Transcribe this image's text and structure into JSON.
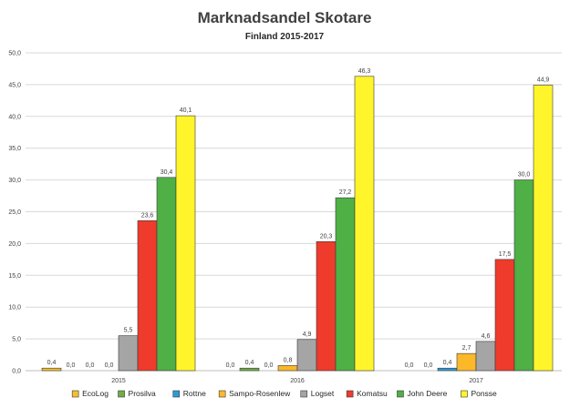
{
  "chart_data": {
    "type": "bar",
    "title": "Marknadsandel Skotare",
    "subtitle": "Finland 2015-2017",
    "categories": [
      "2015",
      "2016",
      "2017"
    ],
    "ylim": [
      0,
      50
    ],
    "yticks": [
      "0,0",
      "5,0",
      "10,0",
      "15,0",
      "20,0",
      "25,0",
      "30,0",
      "35,0",
      "40,0",
      "45,0",
      "50,0"
    ],
    "grid": true,
    "legend_position": "bottom",
    "series": [
      {
        "name": "EcoLog",
        "color": "#f2c12e",
        "values": [
          0.4,
          0.0,
          0.0
        ],
        "labels": [
          "0,4",
          "0,0",
          "0,0"
        ]
      },
      {
        "name": "Prosilva",
        "color": "#70ad47",
        "values": [
          0.0,
          0.4,
          0.0
        ],
        "labels": [
          "0,0",
          "0,4",
          "0,0"
        ]
      },
      {
        "name": "Rottne",
        "color": "#2e9bd6",
        "values": [
          0.0,
          0.0,
          0.4
        ],
        "labels": [
          "0,0",
          "0,0",
          "0,4"
        ]
      },
      {
        "name": "Sampo-Rosenlew",
        "color": "#fbb829",
        "values": [
          0.0,
          0.8,
          2.7
        ],
        "labels": [
          "0,0",
          "0,8",
          "2,7"
        ]
      },
      {
        "name": "Logset",
        "color": "#a5a5a5",
        "values": [
          5.5,
          4.9,
          4.6
        ],
        "labels": [
          "5,5",
          "4,9",
          "4,6"
        ]
      },
      {
        "name": "Komatsu",
        "color": "#ee3b2b",
        "values": [
          23.6,
          20.3,
          17.5
        ],
        "labels": [
          "23,6",
          "20,3",
          "17,5"
        ]
      },
      {
        "name": "John Deere",
        "color": "#4fb045",
        "values": [
          30.4,
          27.2,
          30.0
        ],
        "labels": [
          "30,4",
          "27,2",
          "30,0"
        ]
      },
      {
        "name": "Ponsse",
        "color": "#fff52a",
        "values": [
          40.1,
          46.3,
          44.9
        ],
        "labels": [
          "40,1",
          "46,3",
          "44,9"
        ]
      }
    ]
  }
}
